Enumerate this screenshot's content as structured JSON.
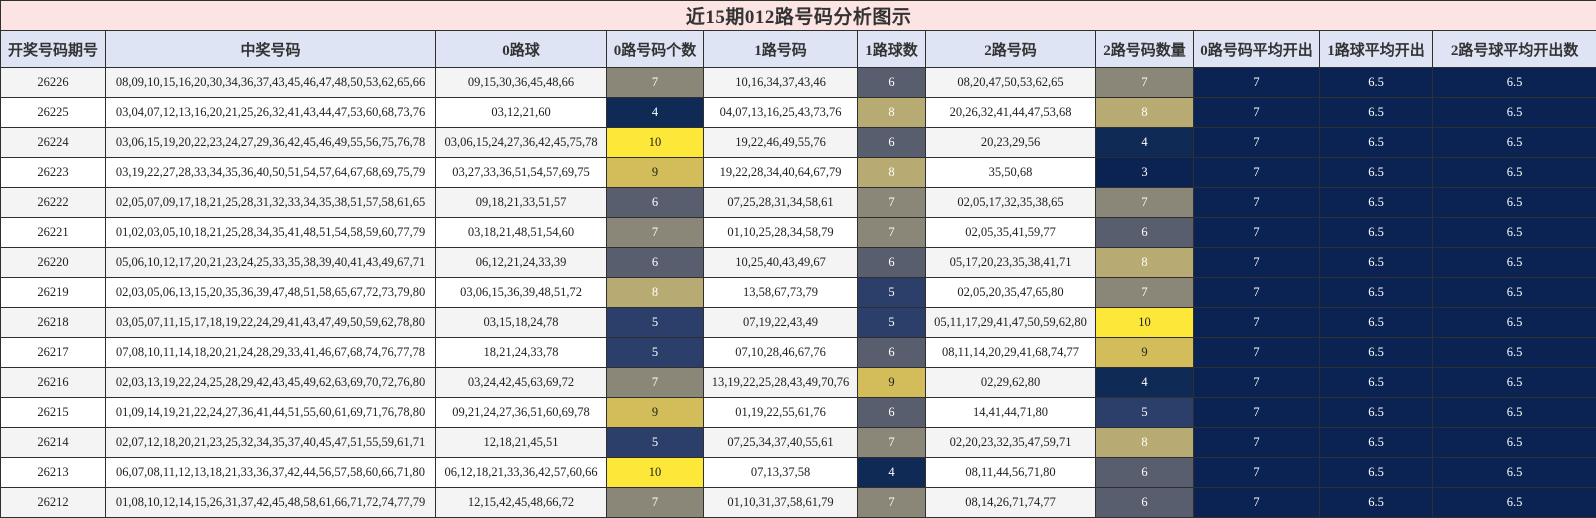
{
  "title": "近15期012路号码分析图示",
  "headers": [
    "开奖号码期号",
    "中奖号码",
    "0路球",
    "0路号码个数",
    "1路号码",
    "1路球数",
    "2路号码",
    "2路号码数量",
    "0路号码平均开出",
    "1路球平均开出",
    "2路号球平均开出数"
  ],
  "colors": {
    "title_bg": "#fbe4e2",
    "header_bg": "#dfe4f5",
    "avg_bg": "#0a2352",
    "scale": {
      "3": "#0a2352",
      "4": "#0f2a55",
      "5": "#2c3e6a",
      "6": "#585e6e",
      "7": "#8a8778",
      "8": "#b7aa72",
      "9": "#d2bd5a",
      "10": "#fde83a"
    }
  },
  "rows": [
    {
      "issue": "26226",
      "winning": "08,09,10,15,16,20,30,34,36,37,43,45,46,47,48,50,53,62,65,66",
      "r0": "09,15,30,36,45,48,66",
      "c0": "7",
      "r1": "10,16,34,37,43,46",
      "c1": "6",
      "r2": "08,20,47,50,53,62,65",
      "c2": "7",
      "a0": "7",
      "a1": "6.5",
      "a2": "6.5"
    },
    {
      "issue": "26225",
      "winning": "03,04,07,12,13,16,20,21,25,26,32,41,43,44,47,53,60,68,73,76",
      "r0": "03,12,21,60",
      "c0": "4",
      "r1": "04,07,13,16,25,43,73,76",
      "c1": "8",
      "r2": "20,26,32,41,44,47,53,68",
      "c2": "8",
      "a0": "7",
      "a1": "6.5",
      "a2": "6.5"
    },
    {
      "issue": "26224",
      "winning": "03,06,15,19,20,22,23,24,27,29,36,42,45,46,49,55,56,75,76,78",
      "r0": "03,06,15,24,27,36,42,45,75,78",
      "c0": "10",
      "r1": "19,22,46,49,55,76",
      "c1": "6",
      "r2": "20,23,29,56",
      "c2": "4",
      "a0": "7",
      "a1": "6.5",
      "a2": "6.5"
    },
    {
      "issue": "26223",
      "winning": "03,19,22,27,28,33,34,35,36,40,50,51,54,57,64,67,68,69,75,79",
      "r0": "03,27,33,36,51,54,57,69,75",
      "c0": "9",
      "r1": "19,22,28,34,40,64,67,79",
      "c1": "8",
      "r2": "35,50,68",
      "c2": "3",
      "a0": "7",
      "a1": "6.5",
      "a2": "6.5"
    },
    {
      "issue": "26222",
      "winning": "02,05,07,09,17,18,21,25,28,31,32,33,34,35,38,51,57,58,61,65",
      "r0": "09,18,21,33,51,57",
      "c0": "6",
      "r1": "07,25,28,31,34,58,61",
      "c1": "7",
      "r2": "02,05,17,32,35,38,65",
      "c2": "7",
      "a0": "7",
      "a1": "6.5",
      "a2": "6.5"
    },
    {
      "issue": "26221",
      "winning": "01,02,03,05,10,18,21,25,28,34,35,41,48,51,54,58,59,60,77,79",
      "r0": "03,18,21,48,51,54,60",
      "c0": "7",
      "r1": "01,10,25,28,34,58,79",
      "c1": "7",
      "r2": "02,05,35,41,59,77",
      "c2": "6",
      "a0": "7",
      "a1": "6.5",
      "a2": "6.5"
    },
    {
      "issue": "26220",
      "winning": "05,06,10,12,17,20,21,23,24,25,33,35,38,39,40,41,43,49,67,71",
      "r0": "06,12,21,24,33,39",
      "c0": "6",
      "r1": "10,25,40,43,49,67",
      "c1": "6",
      "r2": "05,17,20,23,35,38,41,71",
      "c2": "8",
      "a0": "7",
      "a1": "6.5",
      "a2": "6.5"
    },
    {
      "issue": "26219",
      "winning": "02,03,05,06,13,15,20,35,36,39,47,48,51,58,65,67,72,73,79,80",
      "r0": "03,06,15,36,39,48,51,72",
      "c0": "8",
      "r1": "13,58,67,73,79",
      "c1": "5",
      "r2": "02,05,20,35,47,65,80",
      "c2": "7",
      "a0": "7",
      "a1": "6.5",
      "a2": "6.5"
    },
    {
      "issue": "26218",
      "winning": "03,05,07,11,15,17,18,19,22,24,29,41,43,47,49,50,59,62,78,80",
      "r0": "03,15,18,24,78",
      "c0": "5",
      "r1": "07,19,22,43,49",
      "c1": "5",
      "r2": "05,11,17,29,41,47,50,59,62,80",
      "c2": "10",
      "a0": "7",
      "a1": "6.5",
      "a2": "6.5"
    },
    {
      "issue": "26217",
      "winning": "07,08,10,11,14,18,20,21,24,28,29,33,41,46,67,68,74,76,77,78",
      "r0": "18,21,24,33,78",
      "c0": "5",
      "r1": "07,10,28,46,67,76",
      "c1": "6",
      "r2": "08,11,14,20,29,41,68,74,77",
      "c2": "9",
      "a0": "7",
      "a1": "6.5",
      "a2": "6.5"
    },
    {
      "issue": "26216",
      "winning": "02,03,13,19,22,24,25,28,29,42,43,45,49,62,63,69,70,72,76,80",
      "r0": "03,24,42,45,63,69,72",
      "c0": "7",
      "r1": "13,19,22,25,28,43,49,70,76",
      "c1": "9",
      "r2": "02,29,62,80",
      "c2": "4",
      "a0": "7",
      "a1": "6.5",
      "a2": "6.5"
    },
    {
      "issue": "26215",
      "winning": "01,09,14,19,21,22,24,27,36,41,44,51,55,60,61,69,71,76,78,80",
      "r0": "09,21,24,27,36,51,60,69,78",
      "c0": "9",
      "r1": "01,19,22,55,61,76",
      "c1": "6",
      "r2": "14,41,44,71,80",
      "c2": "5",
      "a0": "7",
      "a1": "6.5",
      "a2": "6.5"
    },
    {
      "issue": "26214",
      "winning": "02,07,12,18,20,21,23,25,32,34,35,37,40,45,47,51,55,59,61,71",
      "r0": "12,18,21,45,51",
      "c0": "5",
      "r1": "07,25,34,37,40,55,61",
      "c1": "7",
      "r2": "02,20,23,32,35,47,59,71",
      "c2": "8",
      "a0": "7",
      "a1": "6.5",
      "a2": "6.5"
    },
    {
      "issue": "26213",
      "winning": "06,07,08,11,12,13,18,21,33,36,37,42,44,56,57,58,60,66,71,80",
      "r0": "06,12,18,21,33,36,42,57,60,66",
      "c0": "10",
      "r1": "07,13,37,58",
      "c1": "4",
      "r2": "08,11,44,56,71,80",
      "c2": "6",
      "a0": "7",
      "a1": "6.5",
      "a2": "6.5"
    },
    {
      "issue": "26212",
      "winning": "01,08,10,12,14,15,26,31,37,42,45,48,58,61,66,71,72,74,77,79",
      "r0": "12,15,42,45,48,66,72",
      "c0": "7",
      "r1": "01,10,31,37,58,61,79",
      "c1": "7",
      "r2": "08,14,26,71,74,77",
      "c2": "6",
      "a0": "7",
      "a1": "6.5",
      "a2": "6.5"
    }
  ]
}
